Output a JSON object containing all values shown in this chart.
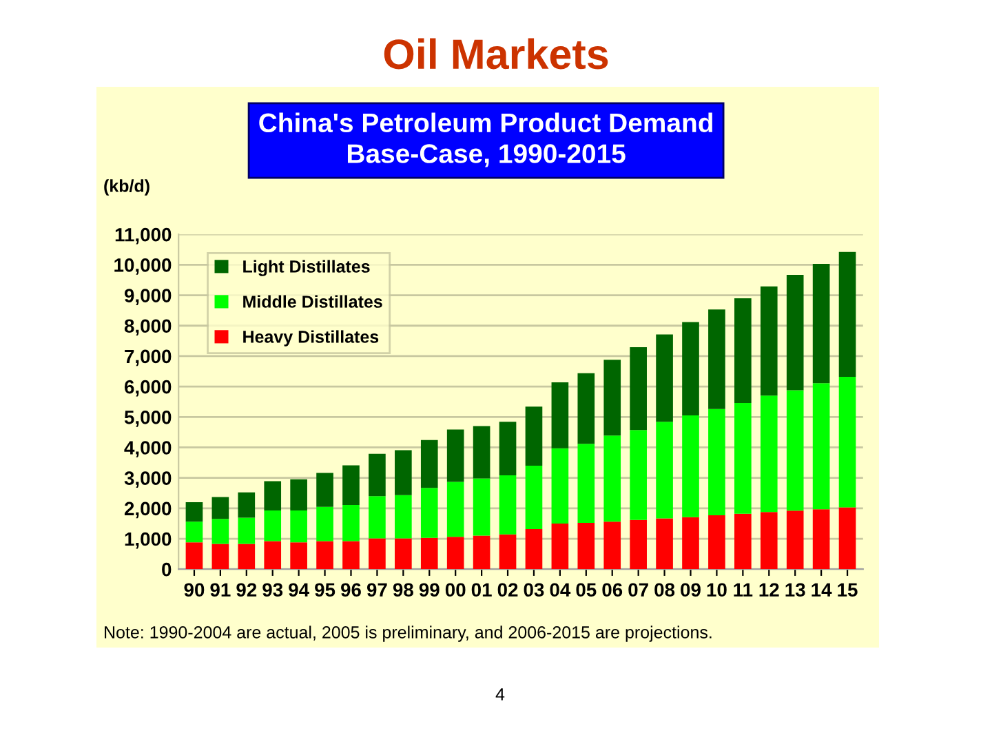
{
  "chart_data": {
    "type": "bar",
    "stacked": true,
    "title": "Oil Markets",
    "subtitle": "China's Petroleum Product Demand\nBase-Case, 1990-2015",
    "ylabel": "(kb/d)",
    "categories": [
      "90",
      "91",
      "92",
      "93",
      "94",
      "95",
      "96",
      "97",
      "98",
      "99",
      "00",
      "01",
      "02",
      "03",
      "04",
      "05",
      "06",
      "07",
      "08",
      "09",
      "10",
      "11",
      "12",
      "13",
      "14",
      "15"
    ],
    "series": [
      {
        "name": "Heavy Distillates",
        "color": "#ff0000",
        "values": [
          880,
          830,
          830,
          920,
          880,
          920,
          920,
          1010,
          1010,
          1030,
          1060,
          1100,
          1140,
          1320,
          1500,
          1520,
          1560,
          1620,
          1670,
          1710,
          1770,
          1820,
          1880,
          1920,
          1970,
          2030
        ]
      },
      {
        "name": "Middle Distillates",
        "color": "#00ff00",
        "values": [
          680,
          820,
          860,
          1010,
          1050,
          1130,
          1190,
          1390,
          1420,
          1640,
          1810,
          1880,
          1940,
          2080,
          2470,
          2600,
          2830,
          2950,
          3170,
          3340,
          3490,
          3640,
          3820,
          3960,
          4140,
          4290
        ]
      },
      {
        "name": "Light Distillates",
        "color": "#006600",
        "values": [
          640,
          720,
          830,
          960,
          1020,
          1110,
          1300,
          1390,
          1480,
          1570,
          1720,
          1720,
          1760,
          1940,
          2170,
          2320,
          2490,
          2720,
          2870,
          3070,
          3270,
          3440,
          3590,
          3790,
          3920,
          4100
        ]
      }
    ],
    "ylim": [
      0,
      11000
    ],
    "yticks": [
      {
        "value": 0,
        "label": "0"
      },
      {
        "value": 1000,
        "label": "1,000"
      },
      {
        "value": 2000,
        "label": "2,000"
      },
      {
        "value": 3000,
        "label": "3,000"
      },
      {
        "value": 4000,
        "label": "4,000"
      },
      {
        "value": 5000,
        "label": "5,000"
      },
      {
        "value": 6000,
        "label": "6,000"
      },
      {
        "value": 7000,
        "label": "7,000"
      },
      {
        "value": 8000,
        "label": "8,000"
      },
      {
        "value": 9000,
        "label": "9,000"
      },
      {
        "value": 10000,
        "label": "10,000"
      },
      {
        "value": 11000,
        "label": "11,000"
      }
    ],
    "grid": "y",
    "legend": "top left",
    "annotations": [
      "Note: 1990-2004 are actual, 2005 is preliminary, and 2006-2015 are projections.",
      "4"
    ]
  }
}
